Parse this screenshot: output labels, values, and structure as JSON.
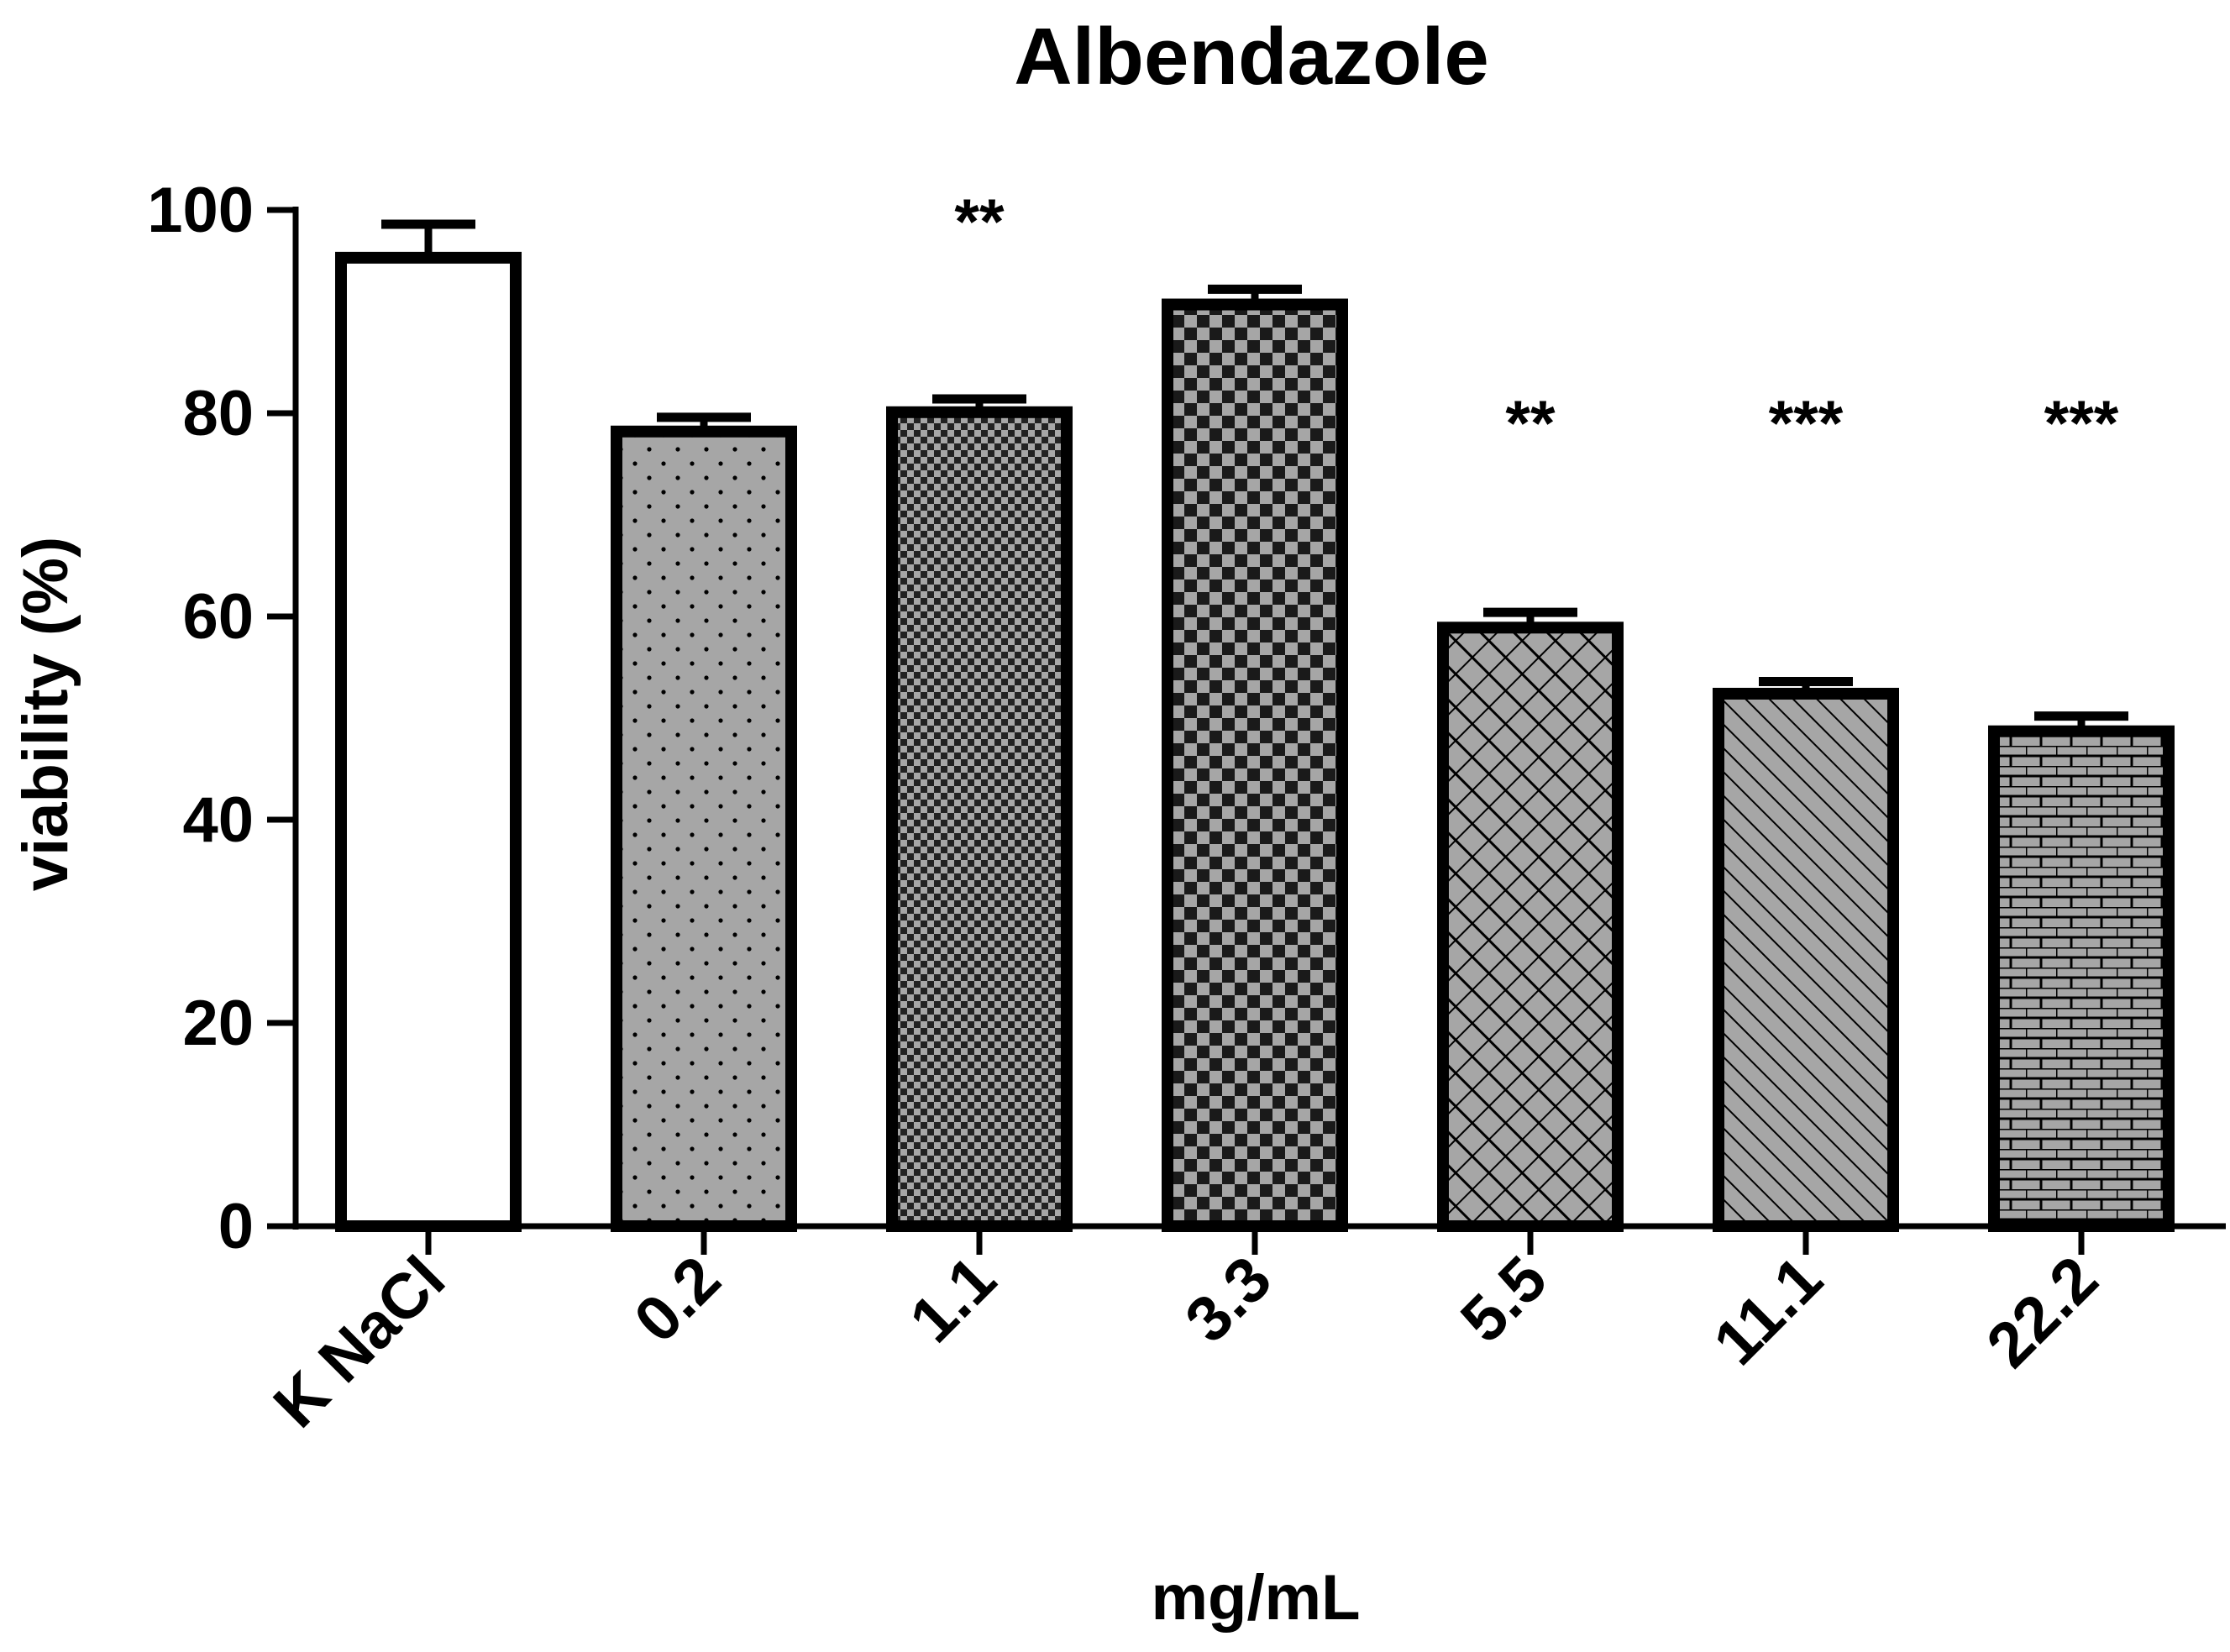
{
  "chart_data": {
    "type": "bar",
    "title": "Albendazole",
    "xlabel": "mg/mL",
    "ylabel": "viability (%)",
    "ylim": [
      0,
      100
    ],
    "yticks": [
      "0",
      "20",
      "40",
      "60",
      "80",
      "100"
    ],
    "categories": [
      "K NaCl",
      "0.2",
      "1.1",
      "3.3",
      "5.5",
      "11.1",
      "22.2"
    ],
    "values": [
      95.3,
      78.2,
      80.1,
      90.7,
      58.9,
      52.4,
      48.7
    ],
    "error_upper": [
      98.6,
      79.6,
      81.4,
      92.2,
      60.4,
      53.6,
      50.2
    ],
    "significance": [
      "",
      "",
      "**",
      "",
      "**",
      "***",
      "***"
    ],
    "patterns": [
      "none",
      "dots",
      "fine-checker",
      "checker",
      "crosshatch",
      "diagonal",
      "brick"
    ],
    "colors": {
      "bar_fill": "#a6a6a6",
      "bar_stroke": "#000000",
      "control_fill": "#ffffff"
    }
  }
}
